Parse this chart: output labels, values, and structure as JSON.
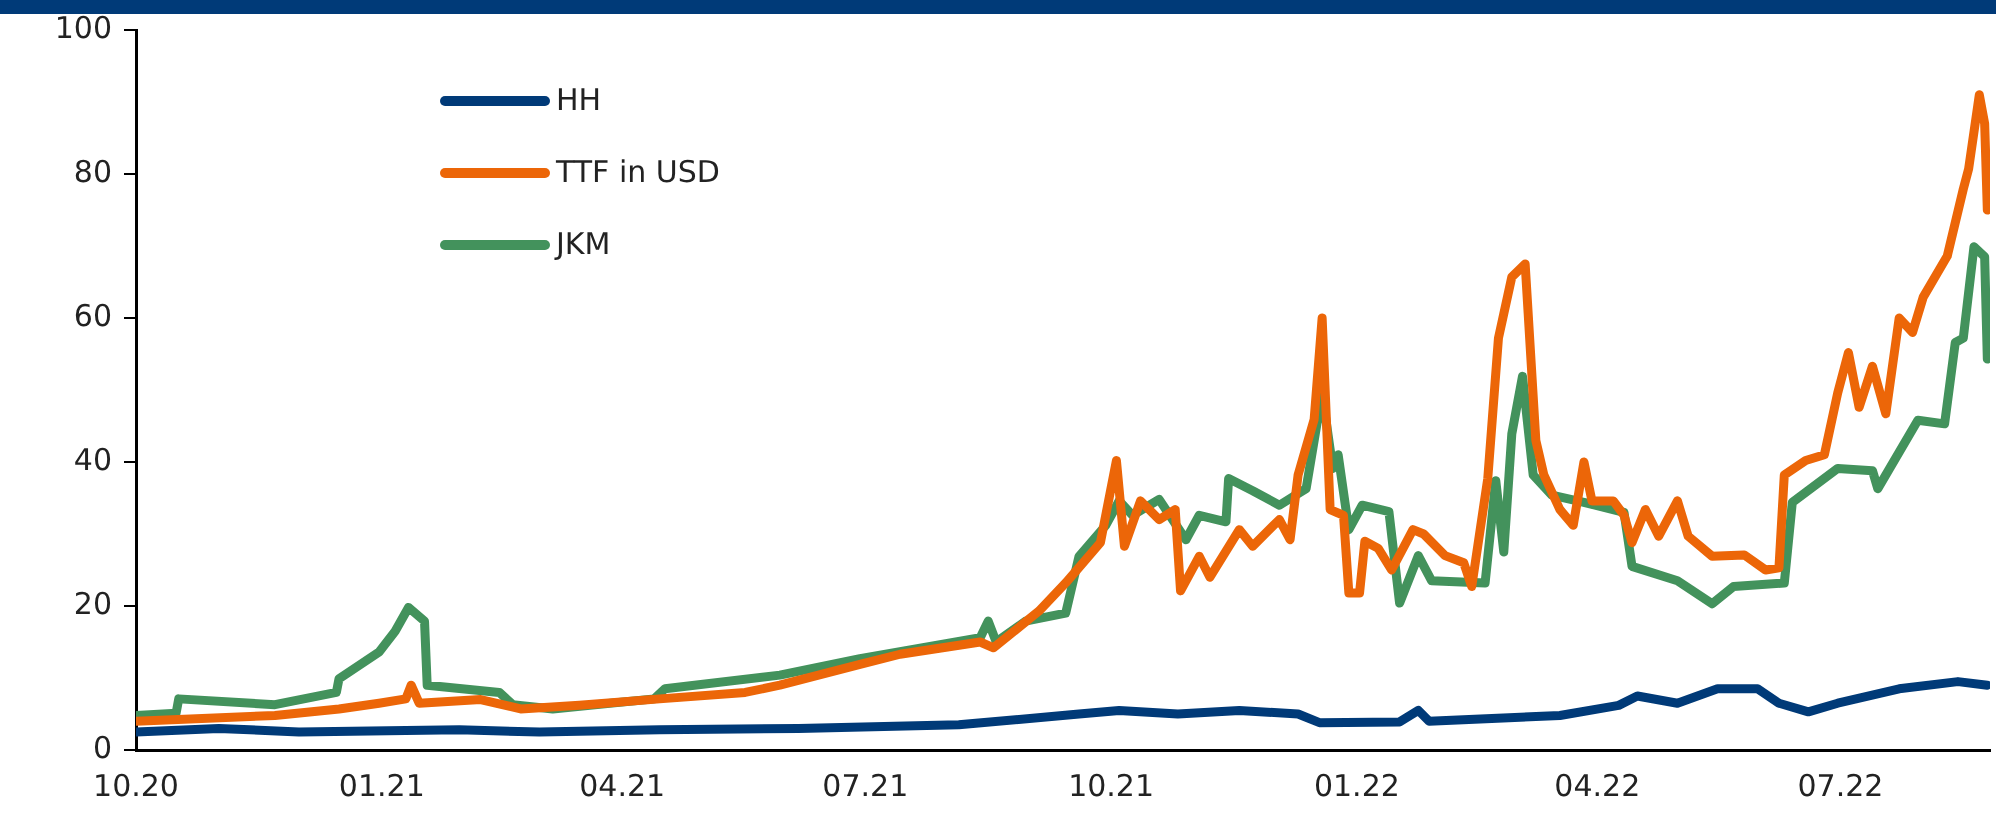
{
  "chart_data": {
    "type": "line",
    "xlim": [
      "2020-10-01",
      "2022-08-26"
    ],
    "xticks": [
      {
        "value": "2020-10-01",
        "label": "10.20"
      },
      {
        "value": "2021-01-01",
        "label": "01.21"
      },
      {
        "value": "2021-04-01",
        "label": "04.21"
      },
      {
        "value": "2021-07-01",
        "label": "07.21"
      },
      {
        "value": "2021-10-01",
        "label": "10.21"
      },
      {
        "value": "2022-01-01",
        "label": "01.22"
      },
      {
        "value": "2022-04-01",
        "label": "04.22"
      },
      {
        "value": "2022-07-01",
        "label": "07.22"
      }
    ],
    "ylim": [
      0,
      100
    ],
    "yticks": [
      0,
      20,
      40,
      60,
      80,
      100
    ],
    "grid": false,
    "legend": "top left",
    "marker": "none",
    "line_style": "solid",
    "series": [
      {
        "name": "HH",
        "color": "#003a78",
        "x": [
          "2020-10-01",
          "2020-11-01",
          "2020-12-01",
          "2021-01-30",
          "2021-03-01",
          "2021-04-15",
          "2021-06-06",
          "2021-08-05",
          "2021-09-19",
          "2021-10-04",
          "2021-10-26",
          "2021-11-18",
          "2021-12-10",
          "2021-12-18",
          "2022-01-17",
          "2022-01-24",
          "2022-01-28",
          "2022-03-18",
          "2022-04-09",
          "2022-04-16",
          "2022-05-01",
          "2022-05-16",
          "2022-05-31",
          "2022-06-08",
          "2022-06-19",
          "2022-06-30",
          "2022-07-23",
          "2022-08-14",
          "2022-08-25"
        ],
        "values": [
          2.5,
          3.0,
          2.5,
          2.8,
          2.5,
          2.8,
          3.0,
          3.5,
          5.0,
          5.5,
          5.0,
          5.5,
          5.0,
          3.8,
          3.9,
          5.5,
          4.0,
          4.8,
          6.2,
          7.5,
          6.5,
          8.5,
          8.5,
          6.5,
          5.3,
          6.5,
          8.5,
          9.5,
          9.0
        ]
      },
      {
        "name": "TTF in USD",
        "color": "#ec6608",
        "x": [
          "2020-10-01",
          "2020-11-22",
          "2020-12-16",
          "2020-12-31",
          "2021-01-10",
          "2021-01-12",
          "2021-01-15",
          "2021-02-07",
          "2021-02-22",
          "2021-03-16",
          "2021-04-15",
          "2021-05-17",
          "2021-05-30",
          "2021-06-29",
          "2021-07-14",
          "2021-08-13",
          "2021-08-18",
          "2021-09-04",
          "2021-09-14",
          "2021-09-27",
          "2021-10-03",
          "2021-10-06",
          "2021-10-12",
          "2021-10-19",
          "2021-10-25",
          "2021-10-27",
          "2021-11-03",
          "2021-11-07",
          "2021-11-18",
          "2021-11-23",
          "2021-12-03",
          "2021-12-07",
          "2021-12-10",
          "2021-12-16",
          "2021-12-19",
          "2021-12-22",
          "2021-12-27",
          "2021-12-29",
          "2022-01-02",
          "2022-01-04",
          "2022-01-09",
          "2022-01-14",
          "2022-01-22",
          "2022-01-26",
          "2022-02-03",
          "2022-02-10",
          "2022-02-13",
          "2022-02-19",
          "2022-02-23",
          "2022-02-28",
          "2022-03-05",
          "2022-03-09",
          "2022-03-12",
          "2022-03-18",
          "2022-03-23",
          "2022-03-27",
          "2022-03-30",
          "2022-04-07",
          "2022-04-11",
          "2022-04-14",
          "2022-04-19",
          "2022-04-24",
          "2022-05-01",
          "2022-05-05",
          "2022-05-14",
          "2022-05-26",
          "2022-06-03",
          "2022-06-08",
          "2022-06-10",
          "2022-06-18",
          "2022-06-25",
          "2022-06-30",
          "2022-07-04",
          "2022-07-08",
          "2022-07-13",
          "2022-07-18",
          "2022-07-23",
          "2022-07-28",
          "2022-08-01",
          "2022-08-10",
          "2022-08-16",
          "2022-08-18",
          "2022-08-22",
          "2022-08-24",
          "2022-08-25"
        ],
        "values": [
          4.0,
          4.8,
          5.7,
          6.5,
          7.1,
          9.0,
          6.5,
          7.0,
          5.7,
          6.2,
          7.1,
          8.0,
          9.0,
          11.9,
          13.3,
          15.0,
          14.2,
          19.3,
          23.2,
          28.8,
          40.2,
          28.3,
          34.6,
          32.0,
          33.4,
          22.1,
          26.9,
          24.0,
          30.6,
          28.3,
          32.0,
          29.2,
          38.2,
          45.9,
          60.0,
          33.4,
          32.6,
          21.8,
          21.8,
          29.0,
          28.0,
          25.0,
          30.6,
          30.0,
          27.0,
          26.0,
          22.7,
          37.7,
          57.2,
          65.7,
          67.5,
          43.0,
          38.2,
          33.4,
          31.2,
          40.0,
          34.6,
          34.6,
          32.6,
          28.8,
          33.4,
          29.7,
          34.6,
          29.7,
          26.9,
          27.1,
          25.0,
          25.3,
          38.2,
          40.2,
          41.0,
          49.6,
          55.2,
          47.6,
          53.3,
          46.7,
          60.0,
          58.0,
          62.9,
          68.6,
          77.9,
          80.7,
          91.0,
          87.0,
          75.0
        ]
      },
      {
        "name": "JKM",
        "color": "#43925c",
        "x": [
          "2020-10-01",
          "2020-10-16",
          "2020-10-17",
          "2020-11-22",
          "2020-12-15",
          "2020-12-16",
          "2020-12-31",
          "2021-01-06",
          "2021-01-11",
          "2021-01-17",
          "2021-01-18",
          "2021-02-14",
          "2021-02-19",
          "2021-03-06",
          "2021-04-13",
          "2021-04-17",
          "2021-05-30",
          "2021-06-29",
          "2021-08-13",
          "2021-08-16",
          "2021-08-19",
          "2021-08-30",
          "2021-09-14",
          "2021-09-19",
          "2021-09-29",
          "2021-10-04",
          "2021-10-09",
          "2021-10-19",
          "2021-10-29",
          "2021-11-03",
          "2021-11-13",
          "2021-11-14",
          "2021-11-23",
          "2021-12-03",
          "2021-12-13",
          "2021-12-19",
          "2021-12-23",
          "2021-12-25",
          "2021-12-29",
          "2022-01-03",
          "2022-01-13",
          "2022-01-17",
          "2022-01-24",
          "2022-01-29",
          "2022-02-18",
          "2022-02-22",
          "2022-02-25",
          "2022-02-28",
          "2022-03-04",
          "2022-03-08",
          "2022-03-15",
          "2022-03-27",
          "2022-04-11",
          "2022-04-14",
          "2022-05-01",
          "2022-05-14",
          "2022-05-22",
          "2022-06-10",
          "2022-06-13",
          "2022-06-30",
          "2022-07-13",
          "2022-07-15",
          "2022-07-30",
          "2022-08-09",
          "2022-08-13",
          "2022-08-16",
          "2022-08-20",
          "2022-08-24",
          "2022-08-25"
        ],
        "values": [
          4.8,
          5.1,
          7.1,
          6.3,
          8.0,
          9.9,
          13.6,
          16.5,
          19.8,
          17.9,
          9.0,
          8.0,
          6.3,
          5.7,
          7.1,
          8.5,
          10.4,
          12.7,
          15.6,
          17.9,
          15.0,
          17.9,
          19.0,
          26.9,
          31.2,
          34.6,
          32.6,
          34.8,
          29.2,
          32.6,
          31.7,
          37.7,
          36.0,
          34.0,
          36.3,
          49.6,
          39.1,
          41.0,
          30.6,
          34.0,
          33.1,
          20.4,
          27.0,
          23.5,
          23.2,
          37.4,
          27.5,
          43.9,
          51.9,
          38.2,
          35.4,
          34.4,
          33.0,
          25.5,
          23.5,
          20.3,
          22.7,
          23.2,
          34.4,
          39.1,
          38.8,
          36.3,
          45.8,
          45.3,
          56.6,
          57.2,
          69.9,
          68.5,
          54.3
        ]
      }
    ]
  }
}
